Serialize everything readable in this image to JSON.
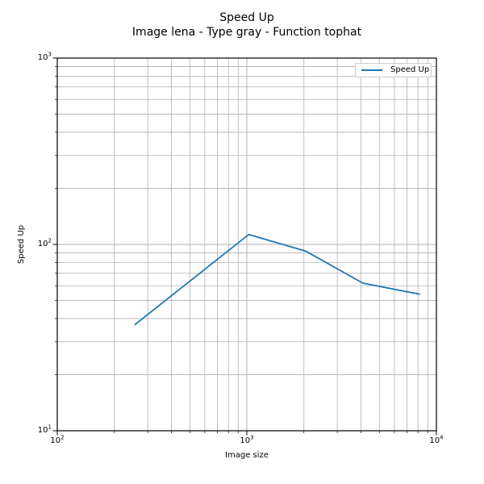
{
  "chart_data": {
    "type": "line",
    "title": "Speed Up",
    "subtitle": "Image lena - Type gray - Function tophat",
    "xlabel": "Image size",
    "ylabel": "Speed Up",
    "x_scale": "log",
    "y_scale": "log",
    "xlim": [
      100,
      10000
    ],
    "ylim": [
      10,
      1000
    ],
    "grid": "major-and-minor",
    "legend_position": "upper right",
    "series": [
      {
        "name": "Speed Up",
        "color": "#1f77b4",
        "x": [
          256,
          1024,
          2048,
          4096,
          8192
        ],
        "y": [
          37,
          113,
          92,
          62,
          54
        ]
      }
    ],
    "x_tick_labels": [
      {
        "base": "10",
        "exp": "2"
      },
      {
        "base": "10",
        "exp": "3"
      },
      {
        "base": "10",
        "exp": "4"
      }
    ],
    "y_tick_labels": [
      {
        "base": "10",
        "exp": "3"
      },
      {
        "base": "10",
        "exp": "2"
      },
      {
        "base": "10",
        "exp": "1"
      }
    ]
  },
  "legend": {
    "label": "Speed Up"
  },
  "colors": {
    "line": "#1f77b4",
    "grid": "#b0b0b0",
    "axis": "#000000",
    "text": "#000000",
    "legend_border": "#cccccc"
  }
}
